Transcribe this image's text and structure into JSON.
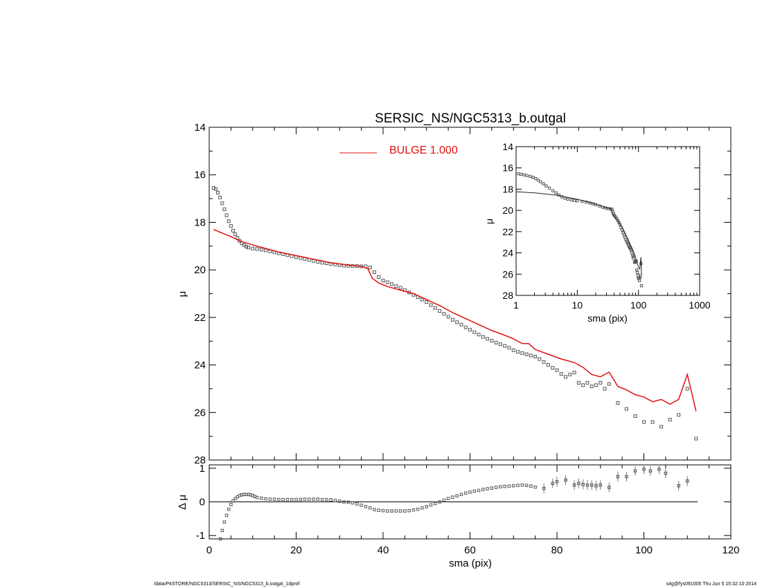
{
  "title": "SERSIC_NS/NGC5313_b.outgal",
  "footer": {
    "left": "/data/P4STORE/NGC5313/SERSIC_NS/NGC5313_b.outgal_1dprof",
    "right": "s4g@fys091005  Thu Jun  5 15:32:10 2014"
  },
  "colors": {
    "model": "#e01010",
    "data": "#555555",
    "axis": "#000000"
  },
  "chart_data": [
    {
      "name": "main-profile",
      "type": "scatter",
      "xlabel": "",
      "ylabel": "μ",
      "xlim": [
        0,
        120
      ],
      "ylim": [
        28,
        14
      ],
      "y_reversed": true,
      "yticks": [
        "14",
        "16",
        "18",
        "20",
        "22",
        "24",
        "26",
        "28"
      ],
      "legend": {
        "label": "BULGE  1.000",
        "placement": "top-center"
      },
      "data_points": [
        [
          1.0,
          16.55
        ],
        [
          1.5,
          16.6
        ],
        [
          2.0,
          16.75
        ],
        [
          2.5,
          16.95
        ],
        [
          3.0,
          17.2
        ],
        [
          3.5,
          17.45
        ],
        [
          4.0,
          17.7
        ],
        [
          4.5,
          17.95
        ],
        [
          5.0,
          18.15
        ],
        [
          5.5,
          18.35
        ],
        [
          6.0,
          18.5
        ],
        [
          6.5,
          18.65
        ],
        [
          7.0,
          18.78
        ],
        [
          7.5,
          18.88
        ],
        [
          8.0,
          18.96
        ],
        [
          8.5,
          19.02
        ],
        [
          9.0,
          19.06
        ],
        [
          10,
          19.1
        ],
        [
          11,
          19.12
        ],
        [
          12,
          19.15
        ],
        [
          13,
          19.18
        ],
        [
          14,
          19.22
        ],
        [
          15,
          19.26
        ],
        [
          16,
          19.3
        ],
        [
          17,
          19.34
        ],
        [
          18,
          19.38
        ],
        [
          19,
          19.42
        ],
        [
          20,
          19.46
        ],
        [
          21,
          19.5
        ],
        [
          22,
          19.54
        ],
        [
          23,
          19.58
        ],
        [
          24,
          19.62
        ],
        [
          25,
          19.66
        ],
        [
          26,
          19.7
        ],
        [
          27,
          19.72
        ],
        [
          28,
          19.75
        ],
        [
          29,
          19.77
        ],
        [
          30,
          19.8
        ],
        [
          31,
          19.82
        ],
        [
          32,
          19.83
        ],
        [
          33,
          19.84
        ],
        [
          34,
          19.84
        ],
        [
          35,
          19.85
        ],
        [
          36,
          19.85
        ],
        [
          37,
          19.9
        ],
        [
          38,
          20.1
        ],
        [
          39,
          20.3
        ],
        [
          40,
          20.45
        ],
        [
          41,
          20.52
        ],
        [
          42,
          20.6
        ],
        [
          43,
          20.68
        ],
        [
          44,
          20.75
        ],
        [
          45,
          20.85
        ],
        [
          46,
          20.95
        ],
        [
          47,
          21.05
        ],
        [
          48,
          21.15
        ],
        [
          49,
          21.25
        ],
        [
          50,
          21.35
        ],
        [
          51,
          21.48
        ],
        [
          52,
          21.6
        ],
        [
          53,
          21.73
        ],
        [
          54,
          21.85
        ],
        [
          55,
          21.97
        ],
        [
          56,
          22.1
        ],
        [
          57,
          22.2
        ],
        [
          58,
          22.3
        ],
        [
          59,
          22.42
        ],
        [
          60,
          22.52
        ],
        [
          61,
          22.62
        ],
        [
          62,
          22.72
        ],
        [
          63,
          22.82
        ],
        [
          64,
          22.9
        ],
        [
          65,
          22.98
        ],
        [
          66,
          23.06
        ],
        [
          67,
          23.13
        ],
        [
          68,
          23.2
        ],
        [
          69,
          23.28
        ],
        [
          70,
          23.38
        ],
        [
          71,
          23.45
        ],
        [
          72,
          23.5
        ],
        [
          73,
          23.55
        ],
        [
          74,
          23.6
        ],
        [
          75,
          23.65
        ],
        [
          76,
          23.75
        ],
        [
          77,
          23.88
        ],
        [
          78,
          24.0
        ],
        [
          79,
          24.12
        ],
        [
          80,
          24.22
        ],
        [
          81,
          24.38
        ],
        [
          82,
          24.5
        ],
        [
          83,
          24.4
        ],
        [
          84,
          24.32
        ],
        [
          85,
          24.75
        ],
        [
          86,
          24.85
        ],
        [
          87,
          24.75
        ],
        [
          88,
          24.9
        ],
        [
          89,
          24.85
        ],
        [
          90,
          24.75
        ],
        [
          91,
          25.0
        ],
        [
          92,
          24.8
        ],
        [
          94,
          25.6
        ],
        [
          96,
          25.85
        ],
        [
          98,
          26.15
        ],
        [
          100,
          26.4
        ],
        [
          102,
          26.4
        ],
        [
          104,
          26.6
        ],
        [
          106,
          26.3
        ],
        [
          108,
          26.1
        ],
        [
          110,
          25.0
        ],
        [
          112,
          27.1
        ]
      ],
      "model_line": [
        [
          1,
          18.3
        ],
        [
          3,
          18.45
        ],
        [
          5,
          18.6
        ],
        [
          7,
          18.78
        ],
        [
          10,
          18.95
        ],
        [
          13,
          19.1
        ],
        [
          16,
          19.25
        ],
        [
          20,
          19.4
        ],
        [
          24,
          19.55
        ],
        [
          28,
          19.7
        ],
        [
          32,
          19.8
        ],
        [
          35,
          19.85
        ],
        [
          36.5,
          19.95
        ],
        [
          37.5,
          20.35
        ],
        [
          39,
          20.55
        ],
        [
          41,
          20.7
        ],
        [
          44,
          20.85
        ],
        [
          47,
          21.0
        ],
        [
          50,
          21.25
        ],
        [
          53,
          21.5
        ],
        [
          56,
          21.8
        ],
        [
          59,
          22.05
        ],
        [
          62,
          22.3
        ],
        [
          65,
          22.55
        ],
        [
          68,
          22.75
        ],
        [
          70,
          22.9
        ],
        [
          72,
          23.1
        ],
        [
          73.5,
          23.1
        ],
        [
          75,
          23.35
        ],
        [
          78,
          23.55
        ],
        [
          81,
          23.75
        ],
        [
          84,
          23.9
        ],
        [
          86,
          24.1
        ],
        [
          88,
          24.4
        ],
        [
          90,
          24.5
        ],
        [
          92,
          24.3
        ],
        [
          94,
          24.9
        ],
        [
          96,
          25.05
        ],
        [
          98,
          25.25
        ],
        [
          100,
          25.35
        ],
        [
          102,
          25.55
        ],
        [
          104,
          25.45
        ],
        [
          106,
          25.65
        ],
        [
          108,
          25.45
        ],
        [
          110,
          24.4
        ],
        [
          112,
          25.95
        ]
      ]
    },
    {
      "name": "residuals",
      "type": "scatter",
      "xlabel": "sma (pix)",
      "ylabel": "Δ μ",
      "xlim": [
        0,
        120
      ],
      "ylim": [
        -1.1,
        1.1
      ],
      "xticks": [
        "0",
        "20",
        "40",
        "60",
        "80",
        "100",
        "120"
      ],
      "yticks": [
        "-1",
        "0",
        "1"
      ],
      "data_points": [
        [
          2.6,
          -1.1
        ],
        [
          3,
          -0.85
        ],
        [
          3.5,
          -0.6
        ],
        [
          4,
          -0.4
        ],
        [
          4.5,
          -0.22
        ],
        [
          5,
          -0.08
        ],
        [
          5.5,
          0.03
        ],
        [
          6,
          0.1
        ],
        [
          6.5,
          0.15
        ],
        [
          7,
          0.19
        ],
        [
          7.5,
          0.21
        ],
        [
          8,
          0.22
        ],
        [
          8.5,
          0.22
        ],
        [
          9,
          0.22
        ],
        [
          9.5,
          0.21
        ],
        [
          10,
          0.19
        ],
        [
          10.5,
          0.16
        ],
        [
          11,
          0.13
        ],
        [
          12,
          0.11
        ],
        [
          13,
          0.09
        ],
        [
          14,
          0.08
        ],
        [
          15,
          0.08
        ],
        [
          16,
          0.07
        ],
        [
          17,
          0.07
        ],
        [
          18,
          0.07
        ],
        [
          19,
          0.07
        ],
        [
          20,
          0.07
        ],
        [
          21,
          0.07
        ],
        [
          22,
          0.08
        ],
        [
          23,
          0.08
        ],
        [
          24,
          0.08
        ],
        [
          25,
          0.08
        ],
        [
          26,
          0.07
        ],
        [
          27,
          0.07
        ],
        [
          28,
          0.06
        ],
        [
          29,
          0.04
        ],
        [
          30,
          0.02
        ],
        [
          31,
          0.0
        ],
        [
          32,
          -0.01
        ],
        [
          33,
          -0.03
        ],
        [
          34,
          -0.06
        ],
        [
          35,
          -0.1
        ],
        [
          36,
          -0.14
        ],
        [
          37,
          -0.18
        ],
        [
          38,
          -0.23
        ],
        [
          39,
          -0.25
        ],
        [
          40,
          -0.26
        ],
        [
          41,
          -0.27
        ],
        [
          42,
          -0.27
        ],
        [
          43,
          -0.27
        ],
        [
          44,
          -0.27
        ],
        [
          45,
          -0.27
        ],
        [
          46,
          -0.26
        ],
        [
          47,
          -0.24
        ],
        [
          48,
          -0.22
        ],
        [
          49,
          -0.18
        ],
        [
          50,
          -0.14
        ],
        [
          51,
          -0.09
        ],
        [
          52,
          -0.05
        ],
        [
          53,
          0.0
        ],
        [
          54,
          0.05
        ],
        [
          55,
          0.1
        ],
        [
          56,
          0.14
        ],
        [
          57,
          0.18
        ],
        [
          58,
          0.22
        ],
        [
          59,
          0.26
        ],
        [
          60,
          0.29
        ],
        [
          61,
          0.32
        ],
        [
          62,
          0.34
        ],
        [
          63,
          0.37
        ],
        [
          64,
          0.39
        ],
        [
          65,
          0.41
        ],
        [
          66,
          0.43
        ],
        [
          67,
          0.45
        ],
        [
          68,
          0.46
        ],
        [
          69,
          0.47
        ],
        [
          70,
          0.48
        ],
        [
          71,
          0.49
        ],
        [
          72,
          0.5
        ],
        [
          73,
          0.49
        ],
        [
          74,
          0.47
        ],
        [
          75,
          0.44
        ],
        [
          77,
          0.4
        ],
        [
          79,
          0.55
        ],
        [
          80,
          0.6
        ],
        [
          82,
          0.65
        ],
        [
          84,
          0.5
        ],
        [
          85,
          0.55
        ],
        [
          86,
          0.52
        ],
        [
          87,
          0.5
        ],
        [
          88,
          0.5
        ],
        [
          89,
          0.48
        ],
        [
          90,
          0.5
        ],
        [
          92,
          0.43
        ],
        [
          94,
          0.75
        ],
        [
          96,
          0.75
        ],
        [
          98,
          0.92
        ],
        [
          100,
          0.97
        ],
        [
          101.5,
          0.92
        ],
        [
          103.5,
          0.97
        ],
        [
          105,
          0.85
        ],
        [
          108,
          0.48
        ],
        [
          110,
          0.62
        ]
      ]
    },
    {
      "name": "inset-log-profile",
      "type": "scatter",
      "xlabel": "sma (pix)",
      "ylabel": "μ",
      "xscale": "log",
      "xlim": [
        1,
        1000
      ],
      "ylim": [
        28,
        14
      ],
      "y_reversed": true,
      "xticks": [
        "1",
        "10",
        "100",
        "1000"
      ],
      "yticks": [
        "14",
        "16",
        "18",
        "20",
        "22",
        "24",
        "26",
        "28"
      ],
      "data_points": [
        [
          1.1,
          16.55
        ],
        [
          1.2,
          16.6
        ],
        [
          1.35,
          16.65
        ],
        [
          1.5,
          16.72
        ],
        [
          1.7,
          16.8
        ],
        [
          1.9,
          16.9
        ],
        [
          2.1,
          17.0
        ],
        [
          2.3,
          17.15
        ],
        [
          2.5,
          17.3
        ],
        [
          2.8,
          17.5
        ],
        [
          3.1,
          17.7
        ],
        [
          3.5,
          17.9
        ],
        [
          4,
          18.15
        ],
        [
          4.5,
          18.35
        ],
        [
          5,
          18.55
        ],
        [
          5.6,
          18.72
        ],
        [
          6.3,
          18.85
        ],
        [
          7,
          18.95
        ],
        [
          8,
          19.02
        ],
        [
          9,
          19.06
        ],
        [
          10,
          19.1
        ],
        [
          12,
          19.15
        ],
        [
          14,
          19.22
        ],
        [
          16,
          19.3
        ],
        [
          18,
          19.38
        ],
        [
          20,
          19.46
        ],
        [
          23,
          19.58
        ],
        [
          26,
          19.7
        ],
        [
          29,
          19.77
        ],
        [
          32,
          19.83
        ],
        [
          35,
          19.85
        ],
        [
          37,
          19.9
        ],
        [
          38,
          20.1
        ],
        [
          39,
          20.3
        ],
        [
          40,
          20.45
        ],
        [
          42,
          20.6
        ],
        [
          44,
          20.75
        ],
        [
          46,
          20.95
        ],
        [
          48,
          21.15
        ],
        [
          50,
          21.35
        ],
        [
          52,
          21.6
        ],
        [
          54,
          21.85
        ],
        [
          56,
          22.1
        ],
        [
          58,
          22.3
        ],
        [
          60,
          22.52
        ],
        [
          62,
          22.72
        ],
        [
          64,
          22.9
        ],
        [
          66,
          23.06
        ],
        [
          68,
          23.2
        ],
        [
          70,
          23.38
        ],
        [
          72,
          23.5
        ],
        [
          74,
          23.6
        ],
        [
          76,
          23.75
        ],
        [
          78,
          24.0
        ],
        [
          80,
          24.22
        ],
        [
          82,
          24.5
        ],
        [
          84,
          24.32
        ],
        [
          86,
          24.85
        ],
        [
          88,
          24.9
        ],
        [
          90,
          24.75
        ],
        [
          92,
          24.8
        ],
        [
          94,
          25.6
        ],
        [
          96,
          25.85
        ],
        [
          98,
          26.15
        ],
        [
          100,
          26.4
        ],
        [
          102,
          26.4
        ],
        [
          104,
          26.6
        ],
        [
          106,
          26.3
        ],
        [
          108,
          26.1
        ],
        [
          110,
          25.0
        ],
        [
          112,
          27.1
        ]
      ],
      "model_line": [
        [
          1,
          18.25
        ],
        [
          2,
          18.35
        ],
        [
          3,
          18.45
        ],
        [
          5,
          18.6
        ],
        [
          7,
          18.78
        ],
        [
          10,
          18.95
        ],
        [
          15,
          19.2
        ],
        [
          20,
          19.4
        ],
        [
          30,
          19.75
        ],
        [
          35,
          19.85
        ],
        [
          37.5,
          20.35
        ],
        [
          45,
          20.9
        ],
        [
          55,
          21.65
        ],
        [
          65,
          22.5
        ],
        [
          75,
          23.3
        ],
        [
          85,
          24.0
        ],
        [
          95,
          24.9
        ],
        [
          100,
          25.35
        ],
        [
          105,
          25.5
        ],
        [
          110,
          24.4
        ],
        [
          112,
          25.95
        ]
      ]
    }
  ]
}
